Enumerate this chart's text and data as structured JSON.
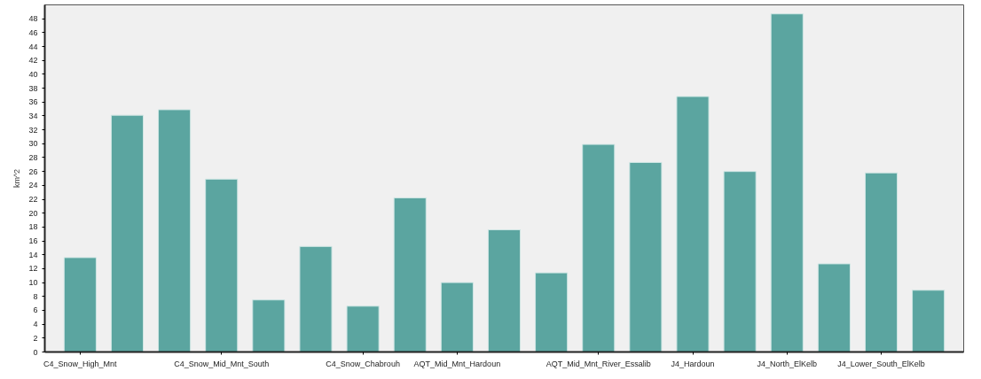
{
  "chart_data": {
    "type": "bar",
    "ylabel": "km^2",
    "categories": [
      "C4_Snow_High_Mnt",
      null,
      null,
      "C4_Snow_Mid_Mnt_South",
      null,
      null,
      "C4_Snow_Chabrouh",
      null,
      "AQT_Mid_Mnt_Hardoun",
      null,
      null,
      "AQT_Mid_Mnt_River_Essalib",
      null,
      "J4_Hardoun",
      null,
      "J4_North_ElKelb",
      null,
      "J4_Lower_South_ElKelb",
      null
    ],
    "values": [
      13.6,
      34.1,
      34.9,
      24.9,
      7.5,
      15.2,
      6.6,
      22.2,
      10.0,
      17.6,
      11.4,
      29.9,
      27.3,
      36.8,
      26.0,
      48.7,
      12.7,
      25.8,
      8.9
    ],
    "color": "#5ba5a0",
    "ylim": [
      0,
      50
    ],
    "yticks": [
      0,
      2,
      4,
      6,
      8,
      10,
      12,
      14,
      16,
      18,
      20,
      22,
      24,
      26,
      28,
      30,
      32,
      34,
      36,
      38,
      40,
      42,
      44,
      46,
      48
    ],
    "grid": false
  }
}
